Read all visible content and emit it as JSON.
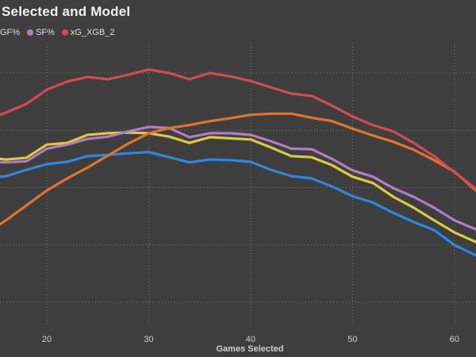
{
  "title": "Selected and Model",
  "legend": {
    "items": [
      {
        "label": "GF%",
        "dot_color": null,
        "dot_visible": false
      },
      {
        "label": "SF%",
        "dot_color": "#b27cc4",
        "dot_visible": true
      },
      {
        "label": "xG_XGB_2",
        "dot_color": "#d14b52",
        "dot_visible": true
      }
    ]
  },
  "colors": {
    "background": "#3e3e3e",
    "gridline": "#757575",
    "title_text": "#f2f2f2",
    "legend_text": "#e0e0e0",
    "axis_text": "#cfcfcf"
  },
  "chart_data": {
    "type": "line",
    "title": "Selected and Model",
    "xlabel": "Games Selected",
    "ylabel": "",
    "grid": "dotted",
    "legend_position": "top-left",
    "x_ticks": [
      20,
      30,
      40,
      50,
      60
    ],
    "xlim": [
      15.4,
      62.1
    ],
    "y_axis_labels_visible": false,
    "y_gridline_units": [
      1,
      2,
      3,
      4,
      5
    ],
    "ylim": [
      0.57,
      5.51
    ],
    "x": [
      15.4,
      16,
      18,
      20,
      22,
      24,
      26,
      28,
      30,
      32,
      34,
      36,
      38,
      40,
      42,
      44,
      46,
      48,
      50,
      52,
      54,
      56,
      58,
      60,
      62.1
    ],
    "series": [
      {
        "name": "blue-series",
        "legend_label": null,
        "color": "#2f86e0",
        "values": [
          3.19,
          3.2,
          3.31,
          3.41,
          3.45,
          3.55,
          3.57,
          3.6,
          3.62,
          3.53,
          3.44,
          3.49,
          3.48,
          3.45,
          3.31,
          3.2,
          3.16,
          3.02,
          2.85,
          2.74,
          2.56,
          2.4,
          2.26,
          2.0,
          1.82
        ]
      },
      {
        "name": "yellow-series",
        "legend_label": null,
        "color": "#ddc93f",
        "values": [
          3.5,
          3.49,
          3.52,
          3.75,
          3.78,
          3.92,
          3.95,
          3.96,
          3.95,
          3.89,
          3.78,
          3.88,
          3.86,
          3.84,
          3.7,
          3.55,
          3.53,
          3.39,
          3.19,
          3.08,
          2.84,
          2.65,
          2.43,
          2.22,
          2.05
        ]
      },
      {
        "name": "purple-series",
        "legend_label": "SF%",
        "color": "#b27cc4",
        "values": [
          3.44,
          3.44,
          3.46,
          3.68,
          3.75,
          3.85,
          3.89,
          3.98,
          4.06,
          4.04,
          3.88,
          3.95,
          3.95,
          3.92,
          3.81,
          3.68,
          3.67,
          3.5,
          3.3,
          3.19,
          2.99,
          2.84,
          2.65,
          2.43,
          2.27
        ]
      },
      {
        "name": "orange-series",
        "legend_label": null,
        "color": "#e2732d",
        "values": [
          2.36,
          2.43,
          2.69,
          2.95,
          3.16,
          3.35,
          3.56,
          3.77,
          3.95,
          4.04,
          4.09,
          4.16,
          4.21,
          4.27,
          4.29,
          4.29,
          4.22,
          4.16,
          4.03,
          3.91,
          3.8,
          3.66,
          3.48,
          3.28,
          2.95
        ]
      },
      {
        "name": "red-series",
        "legend_label": "xG_XGB_2",
        "color": "#d14b52",
        "values": [
          4.27,
          4.31,
          4.46,
          4.71,
          4.85,
          4.93,
          4.89,
          4.97,
          5.06,
          5.0,
          4.89,
          5.0,
          4.94,
          4.86,
          4.75,
          4.64,
          4.6,
          4.43,
          4.24,
          4.09,
          3.98,
          3.78,
          3.55,
          3.27,
          2.98
        ]
      }
    ]
  }
}
